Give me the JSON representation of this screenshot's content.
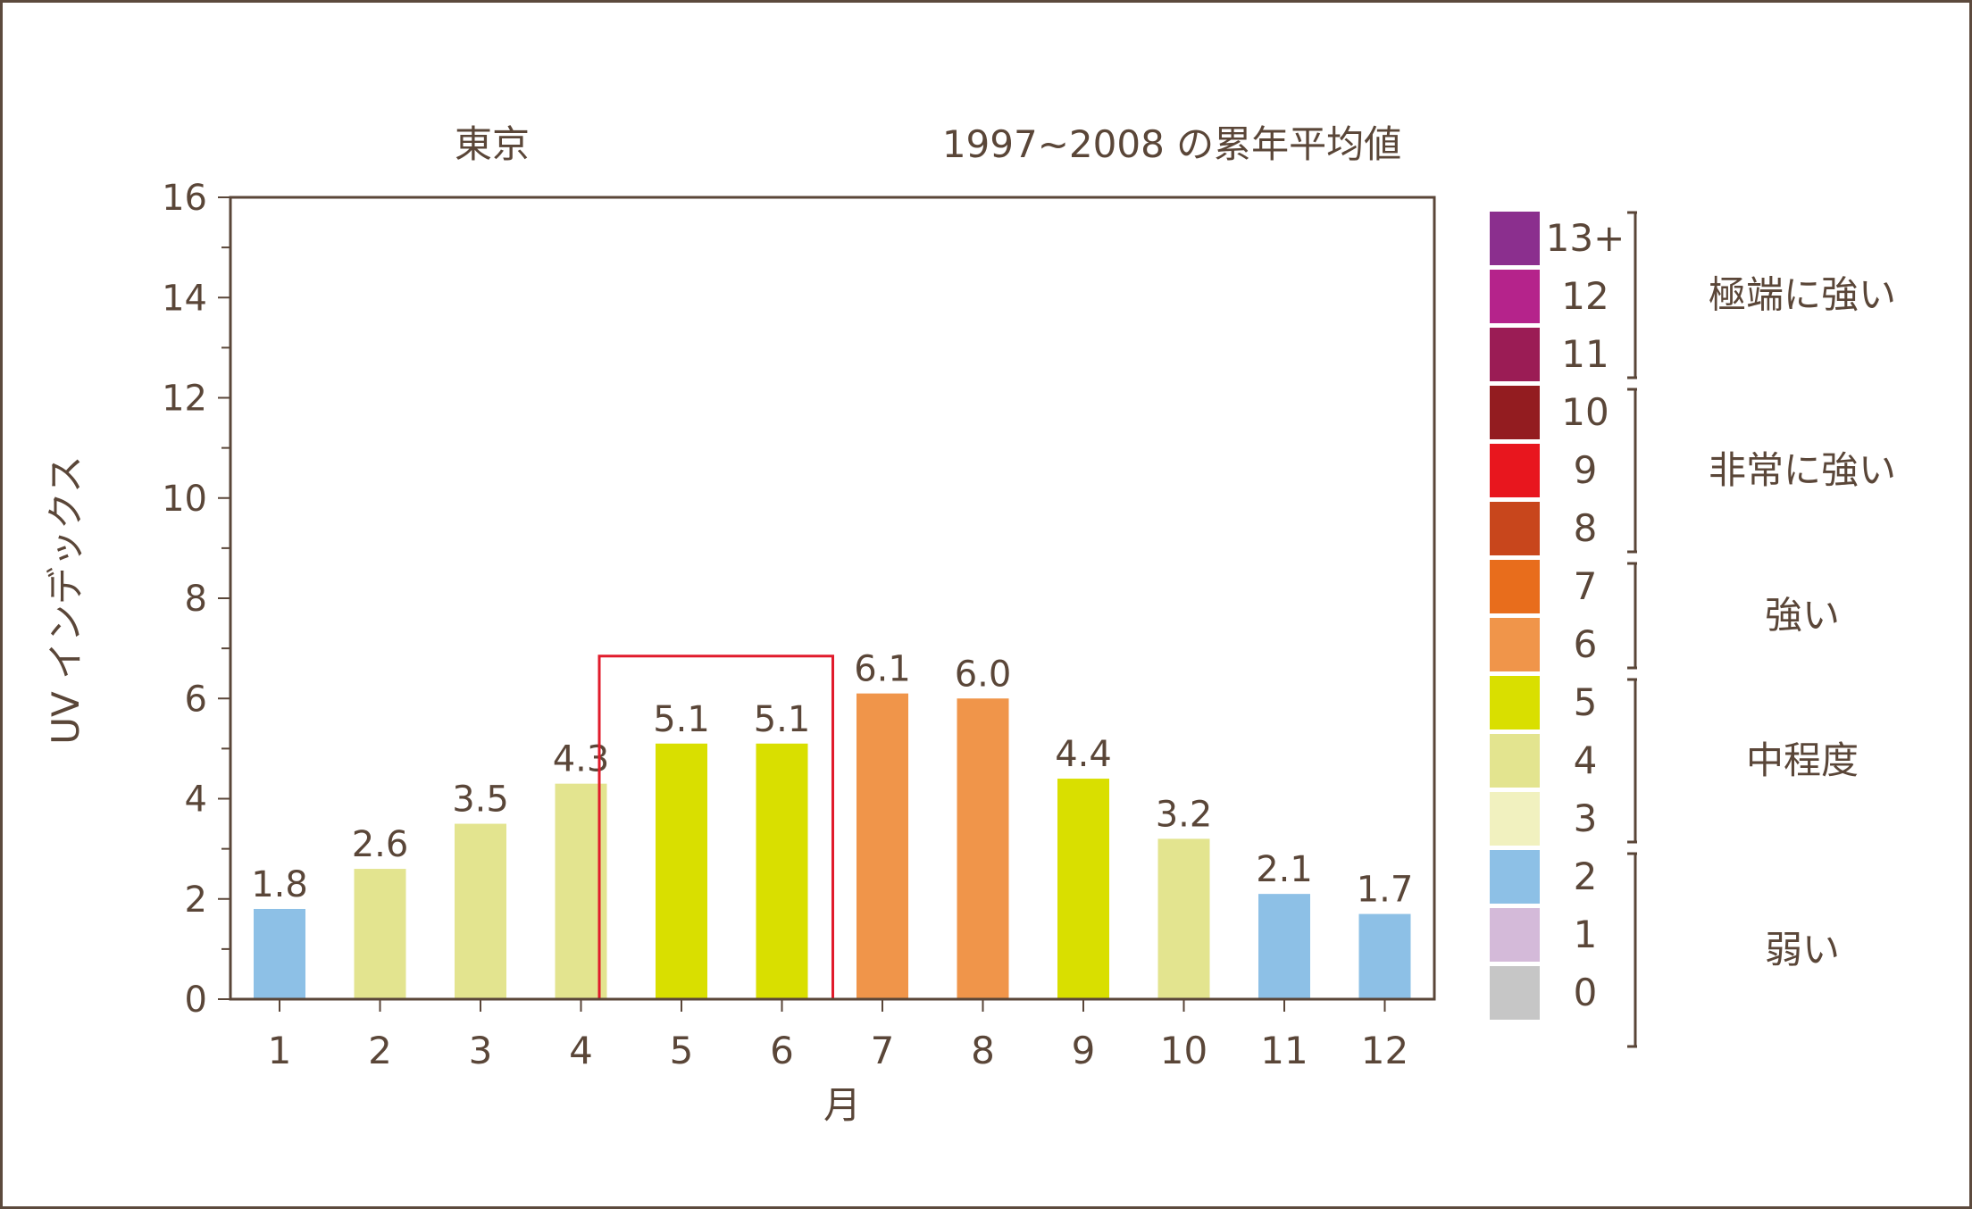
{
  "chart_data": {
    "type": "bar",
    "title_left": "東京",
    "title_right": "1997~2008 の累年平均値",
    "xlabel": "月",
    "ylabel": "UV インデックス",
    "categories": [
      "1",
      "2",
      "3",
      "4",
      "5",
      "6",
      "7",
      "8",
      "9",
      "10",
      "11",
      "12"
    ],
    "values": [
      1.8,
      2.6,
      3.5,
      4.3,
      5.1,
      5.1,
      6.1,
      6.0,
      4.4,
      3.2,
      2.1,
      1.7
    ],
    "value_labels": [
      "1.8",
      "2.6",
      "3.5",
      "4.3",
      "5.1",
      "5.1",
      "6.1",
      "6.0",
      "4.4",
      "3.2",
      "2.1",
      "1.7"
    ],
    "bar_colors": [
      "#8dc0e6",
      "#e3e48f",
      "#e3e48f",
      "#e3e48f",
      "#d9df00",
      "#d9df00",
      "#f0954a",
      "#f0954a",
      "#d9df00",
      "#e3e48f",
      "#8dc0e6",
      "#8dc0e6"
    ],
    "ylim": [
      0,
      16
    ],
    "yticks": [
      "0",
      "2",
      "4",
      "6",
      "8",
      "10",
      "12",
      "14",
      "16"
    ],
    "highlight_months": [
      "5",
      "6"
    ],
    "highlight_color": "#e11b2b",
    "axis_color": "#5a4638",
    "legend": {
      "placement": "right",
      "scale": [
        {
          "label": "13+",
          "color": "#8b2f8e"
        },
        {
          "label": "12",
          "color": "#b5238b"
        },
        {
          "label": "11",
          "color": "#9b1c55"
        },
        {
          "label": "10",
          "color": "#931c20"
        },
        {
          "label": "9",
          "color": "#e8161e"
        },
        {
          "label": "8",
          "color": "#c8461c"
        },
        {
          "label": "7",
          "color": "#e86d1c"
        },
        {
          "label": "6",
          "color": "#f0954a"
        },
        {
          "label": "5",
          "color": "#d9df00"
        },
        {
          "label": "4",
          "color": "#e3e48f"
        },
        {
          "label": "3",
          "color": "#f1f1bf"
        },
        {
          "label": "2",
          "color": "#8dc0e6"
        },
        {
          "label": "1",
          "color": "#d4bad9"
        },
        {
          "label": "0",
          "color": "#c6c6c6"
        }
      ],
      "groups": [
        {
          "label": "極端に強い"
        },
        {
          "label": "非常に強い"
        },
        {
          "label": "強い"
        },
        {
          "label": "中程度"
        },
        {
          "label": "弱い"
        }
      ]
    }
  }
}
